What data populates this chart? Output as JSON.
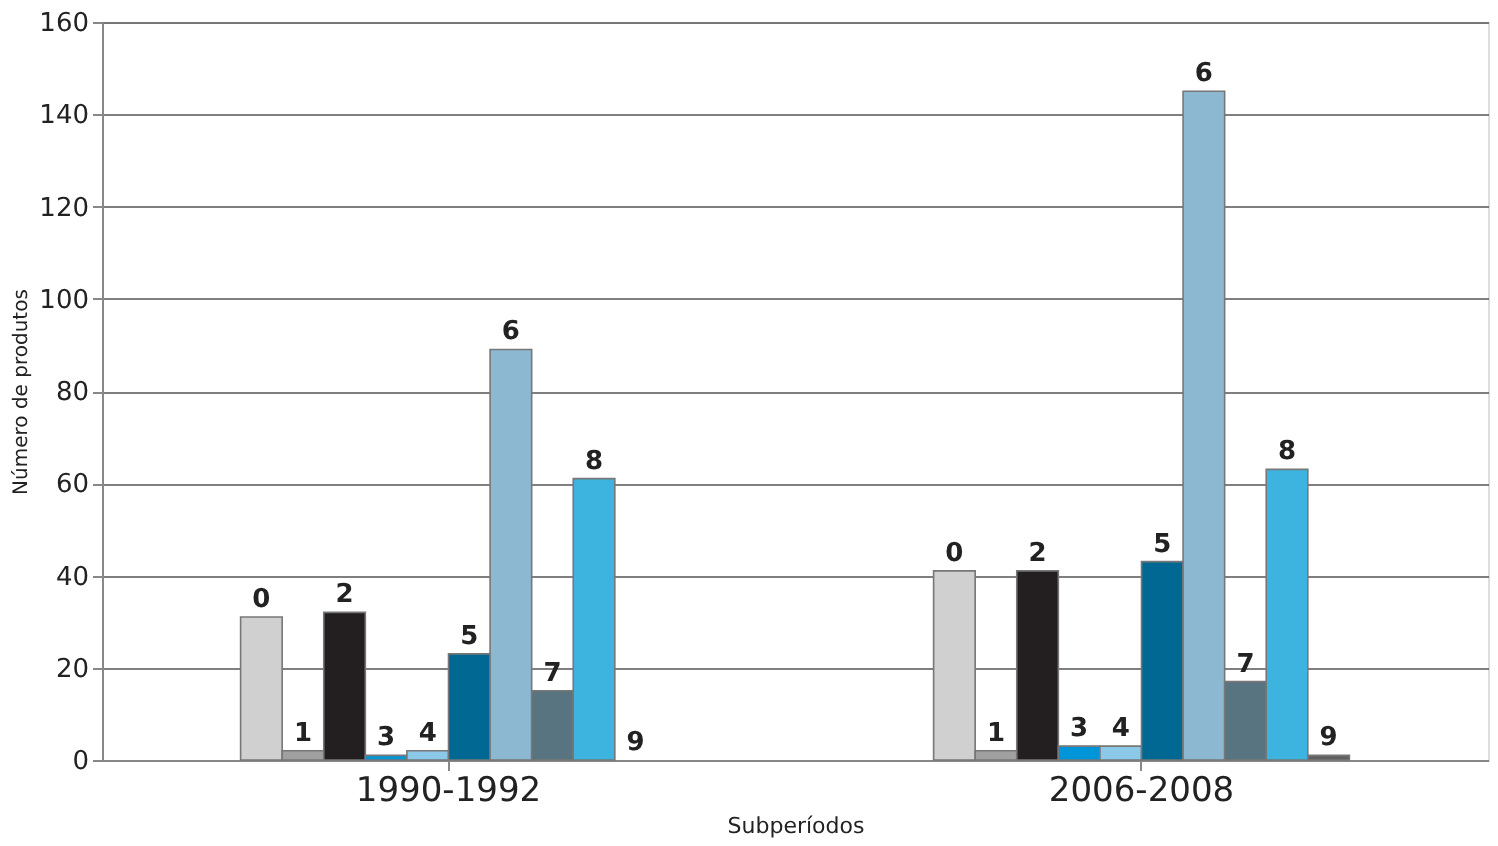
{
  "chart_data": {
    "type": "bar",
    "xlabel": "Subperíodos",
    "ylabel": "Número de produtos",
    "categories": [
      "1990-1992",
      "2006-2008"
    ],
    "series": [
      {
        "name": "0",
        "color": "#d0d0d0",
        "values": [
          31,
          41
        ]
      },
      {
        "name": "1",
        "color": "#a0a0a0",
        "values": [
          2,
          2
        ]
      },
      {
        "name": "2",
        "color": "#231f20",
        "values": [
          32,
          41
        ]
      },
      {
        "name": "3",
        "color": "#0095d9",
        "values": [
          1,
          3
        ]
      },
      {
        "name": "4",
        "color": "#8cc8e8",
        "values": [
          2,
          3
        ]
      },
      {
        "name": "5",
        "color": "#006892",
        "values": [
          23,
          43
        ]
      },
      {
        "name": "6",
        "color": "#8db8d2",
        "values": [
          89,
          145
        ]
      },
      {
        "name": "7",
        "color": "#587481",
        "values": [
          15,
          17
        ]
      },
      {
        "name": "8",
        "color": "#3db4e0",
        "values": [
          61,
          63
        ]
      },
      {
        "name": "9",
        "color": "#606060",
        "values": [
          0,
          1
        ]
      }
    ],
    "ylim": [
      0,
      160
    ],
    "yticks": [
      0,
      20,
      40,
      60,
      80,
      100,
      120,
      140,
      160
    ],
    "grid": "y",
    "legend": false
  }
}
